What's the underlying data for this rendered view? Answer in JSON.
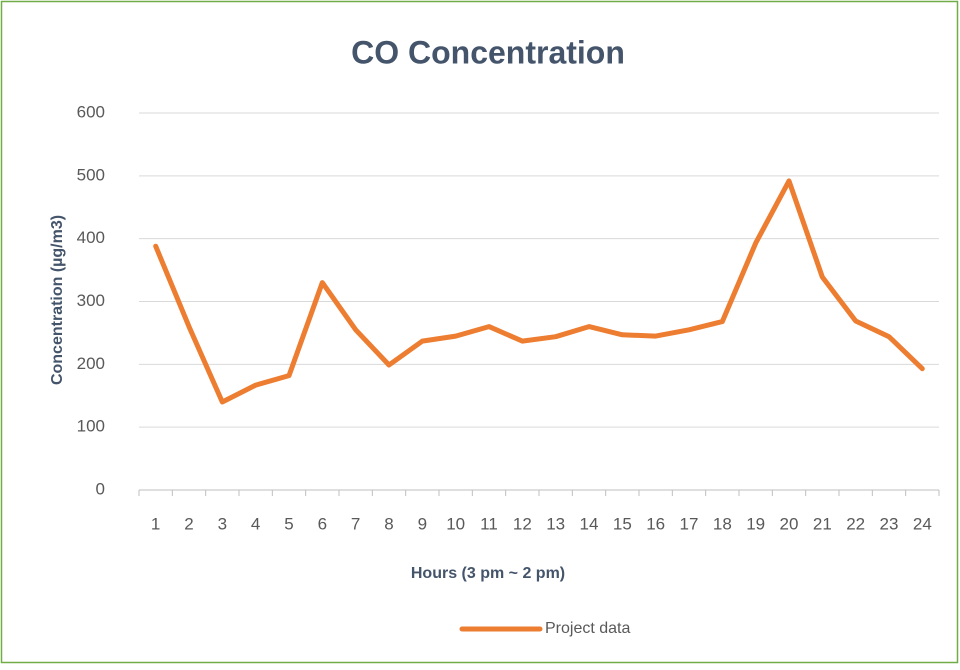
{
  "chart_data": {
    "type": "line",
    "title": "CO Concentration",
    "x_label": "Hours (3 pm ~ 2 pm)",
    "y_label": "Concentration (µg/m3)",
    "categories": [
      1,
      2,
      3,
      4,
      5,
      6,
      7,
      8,
      9,
      10,
      11,
      12,
      13,
      14,
      15,
      16,
      17,
      18,
      19,
      20,
      21,
      22,
      23,
      24
    ],
    "series": [
      {
        "name": "Project data",
        "color": "#ed7d31",
        "values": [
          388,
          260,
          140,
          167,
          182,
          330,
          255,
          199,
          237,
          245,
          260,
          237,
          244,
          260,
          247,
          245,
          255,
          268,
          393,
          492,
          339,
          269,
          244,
          193
        ]
      }
    ],
    "ylim": [
      0,
      600
    ],
    "yticks": [
      0,
      100,
      200,
      300,
      400,
      500,
      600
    ],
    "grid": true,
    "legend": "bottom"
  }
}
